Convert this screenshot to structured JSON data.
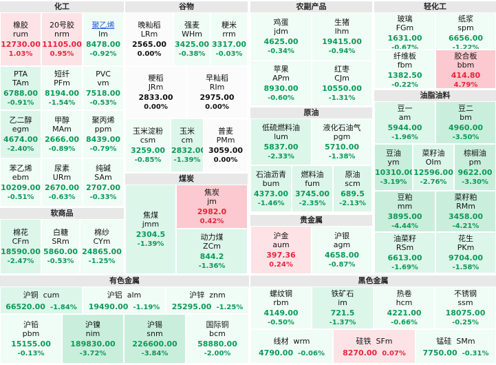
{
  "sections": {
    "chem": "化工",
    "grain": "谷物",
    "agri": "农副产品",
    "light": "轻化工",
    "oil": "原油",
    "oilseed": "油脂油料",
    "soft": "软商品",
    "coal": "煤炭",
    "precious": "贵金属",
    "nonferrous": "有色金属",
    "ferrous": "黑色金属"
  },
  "tiles": {
    "rum": {
      "name": "橡胶",
      "code": "rum",
      "price": "12730.00",
      "change": "1.03%"
    },
    "nrm": {
      "name": "20号胶",
      "code": "nrm",
      "price": "11105.00",
      "change": "0.95%"
    },
    "lm": {
      "name": "聚乙烯",
      "code": "lm",
      "price": "8478.00",
      "change": "-0.92%"
    },
    "tam": {
      "name": "PTA",
      "code": "TAm",
      "price": "6788.00",
      "change": "-0.91%"
    },
    "pfm": {
      "name": "短纤",
      "code": "PFm",
      "price": "8194.00",
      "change": "-1.54%"
    },
    "vm": {
      "name": "PVC",
      "code": "vm",
      "price": "7518.00",
      "change": "-0.53%"
    },
    "egm": {
      "name": "乙二醇",
      "code": "egm",
      "price": "4674.00",
      "change": "-2.40%"
    },
    "mam": {
      "name": "甲醇",
      "code": "MAm",
      "price": "2666.00",
      "change": "-0.89%"
    },
    "ppm": {
      "name": "聚丙烯",
      "code": "ppm",
      "price": "8439.00",
      "change": "-0.79%"
    },
    "ebm": {
      "name": "苯乙烯",
      "code": "ebm",
      "price": "10209.00",
      "change": "-0.51%"
    },
    "urm": {
      "name": "尿素",
      "code": "URm",
      "price": "2670.00",
      "change": "-0.63%"
    },
    "sam": {
      "name": "纯碱",
      "code": "SAm",
      "price": "2707.00",
      "change": "-0.33%"
    },
    "lrm": {
      "name": "晚籼稻",
      "code": "LRm",
      "price": "2565.00",
      "change": "0.00%"
    },
    "whm": {
      "name": "强麦",
      "code": "WHm",
      "price": "3425.00",
      "change": "-0.38%"
    },
    "rrm": {
      "name": "粳米",
      "code": "rrm",
      "price": "3317.00",
      "change": "-0.03%"
    },
    "jrm": {
      "name": "粳稻",
      "code": "JRm",
      "price": "2833.00",
      "change": "0.00%"
    },
    "rim": {
      "name": "早籼稻",
      "code": "RIm",
      "price": "2975.00",
      "change": "0.00%"
    },
    "csm": {
      "name": "玉米淀粉",
      "code": "csm",
      "price": "3259.00",
      "change": "-0.85%"
    },
    "cm": {
      "name": "玉米",
      "code": "cm",
      "price": "2832.00",
      "change": "-1.39%"
    },
    "pmm": {
      "name": "普麦",
      "code": "PMm",
      "price": "3059.00",
      "change": "0.00%"
    },
    "jdm": {
      "name": "鸡蛋",
      "code": "jdm",
      "price": "4625.00",
      "change": "-0.34%"
    },
    "lhm": {
      "name": "生猪",
      "code": "lhm",
      "price": "19415.00",
      "change": "-0.94%"
    },
    "apm": {
      "name": "苹果",
      "code": "APm",
      "price": "8930.00",
      "change": "-0.60%"
    },
    "cjm": {
      "name": "红枣",
      "code": "CJm",
      "price": "10550.00",
      "change": "-1.31%"
    },
    "fgm": {
      "name": "玻璃",
      "code": "FGm",
      "price": "1631.00",
      "change": "-0.67%"
    },
    "spm": {
      "name": "纸浆",
      "code": "spm",
      "price": "6656.00",
      "change": "-1.22%"
    },
    "fbm": {
      "name": "纤维板",
      "code": "fbm",
      "price": "1382.50",
      "change": "-0.22%"
    },
    "bbm": {
      "name": "胶合板",
      "code": "bbm",
      "price": "414.80",
      "change": "4.79%"
    },
    "lum": {
      "name": "低硫燃料油",
      "code": "lum",
      "price": "5837.00",
      "change": "-2.33%"
    },
    "pgm": {
      "name": "液化石油气",
      "code": "pgm",
      "price": "5710.00",
      "change": "-1.38%"
    },
    "bum": {
      "name": "石油沥青",
      "code": "bum",
      "price": "4373.00",
      "change": "-1.46%"
    },
    "fum": {
      "name": "燃料油",
      "code": "fum",
      "price": "3745.00",
      "change": "-2.35%"
    },
    "scm": {
      "name": "原油",
      "code": "scm",
      "price": "689.5",
      "change": "-2.13%"
    },
    "am": {
      "name": "豆一",
      "code": "am",
      "price": "5944.00",
      "change": "-1.96%"
    },
    "bm": {
      "name": "豆二",
      "code": "bm",
      "price": "4960.00",
      "change": "-3.50%"
    },
    "ym": {
      "name": "豆油",
      "code": "ym",
      "price": "10310.00",
      "change": "-3.19%"
    },
    "oim": {
      "name": "菜籽油",
      "code": "OIm",
      "price": "12596.00",
      "change": "-2.76%"
    },
    "pm": {
      "name": "棕榈油",
      "code": "pm",
      "price": "9622.00",
      "change": "-3.30%"
    },
    "mm": {
      "name": "豆粕",
      "code": "mm",
      "price": "3895.00",
      "change": "-4.44%"
    },
    "rmm": {
      "name": "菜籽粕",
      "code": "RMm",
      "price": "3458.00",
      "change": "-4.21%"
    },
    "rsm": {
      "name": "油菜籽",
      "code": "RSm",
      "price": "6613.00",
      "change": "-1.69%"
    },
    "pkm": {
      "name": "花生",
      "code": "PKm",
      "price": "9704.00",
      "change": "-1.58%"
    },
    "cfm": {
      "name": "棉花",
      "code": "CFm",
      "price": "18590.00",
      "change": "-2.47%"
    },
    "srm": {
      "name": "白糖",
      "code": "SRm",
      "price": "5860.00",
      "change": "-0.53%"
    },
    "cym": {
      "name": "棉纱",
      "code": "CYm",
      "price": "24865.00",
      "change": "-1.25%"
    },
    "jmm": {
      "name": "焦煤",
      "code": "jmm",
      "price": "2304.5",
      "change": "-1.39%"
    },
    "jm": {
      "name": "焦炭",
      "code": "jm",
      "price": "2982.0",
      "change": "0.42%"
    },
    "zcm": {
      "name": "动力煤",
      "code": "ZCm",
      "price": "844.2",
      "change": "-1.36%"
    },
    "aum": {
      "name": "沪金",
      "code": "aum",
      "price": "397.36",
      "change": "0.24%"
    },
    "agm": {
      "name": "沪银",
      "code": "agm",
      "price": "4658.00",
      "change": "-0.87%"
    },
    "cum": {
      "name": "沪铜",
      "code": "cum",
      "price": "66520.00",
      "change": "-1.84%"
    },
    "alm": {
      "name": "沪铝",
      "code": "alm",
      "price": "19490.00",
      "change": "-1.19%"
    },
    "znm": {
      "name": "沪锌",
      "code": "znm",
      "price": "25295.00",
      "change": "-1.25%"
    },
    "pbm": {
      "name": "沪铅",
      "code": "pbm",
      "price": "15155.00",
      "change": "-0.13%"
    },
    "nim": {
      "name": "沪镍",
      "code": "nim",
      "price": "189830.00",
      "change": "-3.72%"
    },
    "snm": {
      "name": "沪锡",
      "code": "snm",
      "price": "226600.00",
      "change": "-3.84%"
    },
    "bcm": {
      "name": "国际铜",
      "code": "bcm",
      "price": "58880.00",
      "change": "-2.00%"
    },
    "rbm": {
      "name": "螺纹钢",
      "code": "rbm",
      "price": "4149.00",
      "change": "-0.50%"
    },
    "im": {
      "name": "铁矿石",
      "code": "im",
      "price": "721.5",
      "change": "-1.37%"
    },
    "hcm": {
      "name": "热卷",
      "code": "hcm",
      "price": "4221.00",
      "change": "-0.66%"
    },
    "ssm": {
      "name": "不锈钢",
      "code": "ssm",
      "price": "18075.00",
      "change": "-0.25%"
    },
    "wrm": {
      "name": "线材",
      "code": "wrm",
      "price": "4790.00",
      "change": "-0.06%"
    },
    "sfm": {
      "name": "硅铁",
      "code": "SFm",
      "price": "8270.00",
      "change": "0.07%"
    },
    "smm": {
      "name": "锰硅",
      "code": "SMm",
      "price": "7750.00",
      "change": "-0.31%"
    }
  }
}
